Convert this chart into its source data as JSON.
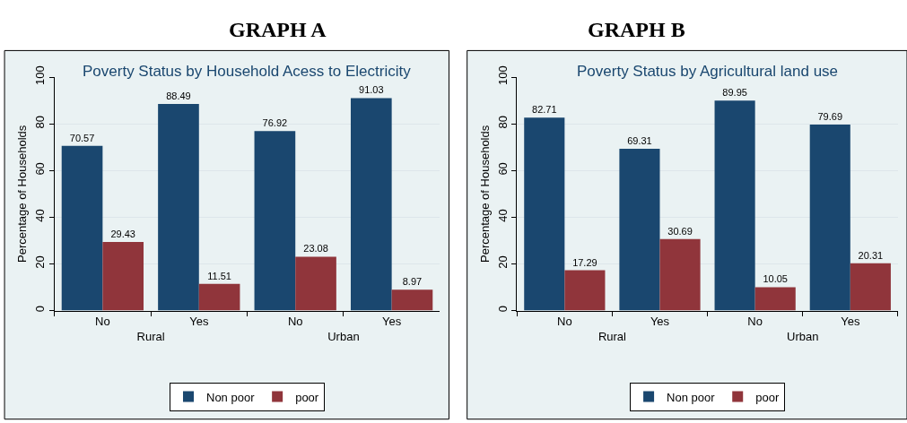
{
  "chart_data": [
    {
      "type": "bar",
      "title": "GRAPH A",
      "subtitle": "Poverty Status by Household Acess to Electricity",
      "ylabel": "Percentage of Households",
      "categories": [
        "No",
        "Yes",
        "No",
        "Yes"
      ],
      "series": [
        {
          "name": "Non poor",
          "color": "#1a476f",
          "values": [
            70.57,
            88.49,
            76.92,
            91.03
          ]
        },
        {
          "name": "poor",
          "color": "#90353b",
          "values": [
            29.43,
            11.51,
            23.08,
            8.97
          ]
        }
      ],
      "annotations": [
        "Rural",
        "Urban"
      ],
      "ylim": [
        0,
        100
      ],
      "yticks": [
        0,
        20,
        40,
        60,
        80,
        100
      ],
      "grid": "y",
      "legend": "bottom",
      "data_labels": true
    },
    {
      "type": "bar",
      "title": "GRAPH B",
      "subtitle": "Poverty Status by Agricultural land use",
      "ylabel": "Percentage of Households",
      "categories": [
        "No",
        "Yes",
        "No",
        "Yes"
      ],
      "series": [
        {
          "name": "Non poor",
          "color": "#1a476f",
          "values": [
            82.71,
            69.31,
            89.95,
            79.69
          ]
        },
        {
          "name": "poor",
          "color": "#90353b",
          "values": [
            17.29,
            30.69,
            10.05,
            20.31
          ]
        }
      ],
      "annotations": [
        "Rural",
        "Urban"
      ],
      "ylim": [
        0,
        100
      ],
      "yticks": [
        0,
        20,
        40,
        60,
        80,
        100
      ],
      "grid": "y",
      "legend": "bottom",
      "data_labels": true
    }
  ]
}
